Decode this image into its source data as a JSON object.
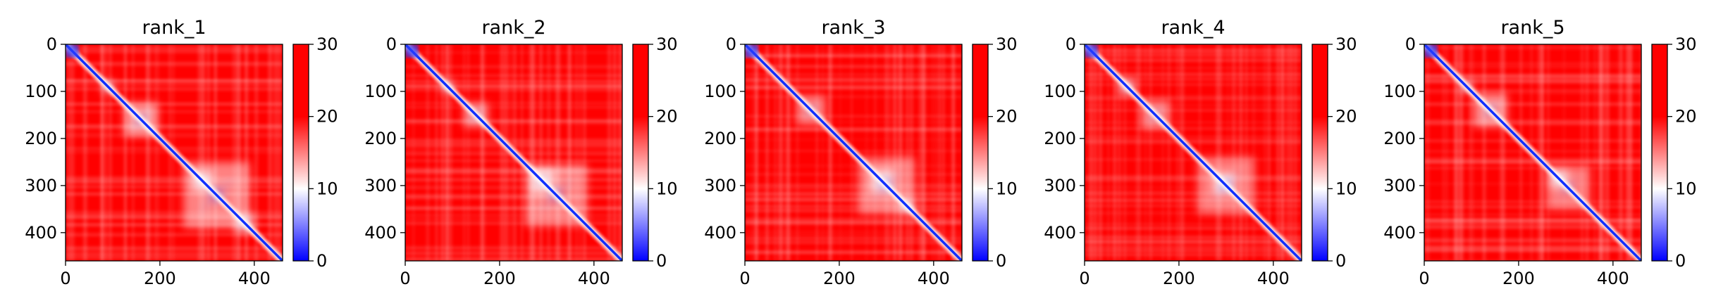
{
  "chart_data": [
    {
      "type": "heatmap",
      "title": "rank_1",
      "xlim": [
        0,
        460
      ],
      "ylim": [
        460,
        0
      ],
      "x_ticks": [
        0,
        200,
        400
      ],
      "y_ticks": [
        0,
        100,
        200,
        300,
        400
      ],
      "colorbar": {
        "min": 0,
        "max": 30,
        "ticks": [
          0,
          10,
          20,
          30
        ],
        "colormap": [
          "#0000ff",
          "#ffffff",
          "#ff0000"
        ]
      },
      "contact_blocks": [
        {
          "center": 90,
          "size": 25,
          "strength": 0.7
        },
        {
          "center": 160,
          "size": 70,
          "strength": 0.75
        },
        {
          "center": 290,
          "size": 40,
          "strength": 0.95
        },
        {
          "center": 320,
          "size": 140,
          "strength": 0.45
        },
        {
          "center": 380,
          "size": 40,
          "strength": 0.8
        }
      ]
    },
    {
      "type": "heatmap",
      "title": "rank_2",
      "xlim": [
        0,
        460
      ],
      "ylim": [
        460,
        0
      ],
      "x_ticks": [
        0,
        200,
        400
      ],
      "y_ticks": [
        0,
        100,
        200,
        300,
        400
      ],
      "colorbar": {
        "min": 0,
        "max": 30,
        "ticks": [
          0,
          10,
          20,
          30
        ],
        "colormap": [
          "#0000ff",
          "#ffffff",
          "#ff0000"
        ]
      },
      "contact_blocks": [
        {
          "center": 90,
          "size": 25,
          "strength": 0.7
        },
        {
          "center": 150,
          "size": 50,
          "strength": 0.6
        },
        {
          "center": 290,
          "size": 50,
          "strength": 0.95
        },
        {
          "center": 320,
          "size": 130,
          "strength": 0.4
        }
      ]
    },
    {
      "type": "heatmap",
      "title": "rank_3",
      "xlim": [
        0,
        460
      ],
      "ylim": [
        460,
        0
      ],
      "x_ticks": [
        0,
        200,
        400
      ],
      "y_ticks": [
        0,
        100,
        200,
        300,
        400
      ],
      "colorbar": {
        "min": 0,
        "max": 30,
        "ticks": [
          0,
          10,
          20,
          30
        ],
        "colormap": [
          "#0000ff",
          "#ffffff",
          "#ff0000"
        ]
      },
      "contact_blocks": [
        {
          "center": 140,
          "size": 60,
          "strength": 0.5
        },
        {
          "center": 290,
          "size": 50,
          "strength": 0.9
        },
        {
          "center": 345,
          "size": 30,
          "strength": 0.9
        },
        {
          "center": 300,
          "size": 120,
          "strength": 0.35
        }
      ]
    },
    {
      "type": "heatmap",
      "title": "rank_4",
      "xlim": [
        0,
        460
      ],
      "ylim": [
        460,
        0
      ],
      "x_ticks": [
        0,
        200,
        400
      ],
      "y_ticks": [
        0,
        100,
        200,
        300,
        400
      ],
      "colorbar": {
        "min": 0,
        "max": 30,
        "ticks": [
          0,
          10,
          20,
          30
        ],
        "colormap": [
          "#0000ff",
          "#ffffff",
          "#ff0000"
        ]
      },
      "contact_blocks": [
        {
          "center": 90,
          "size": 35,
          "strength": 0.85
        },
        {
          "center": 150,
          "size": 60,
          "strength": 0.5
        },
        {
          "center": 295,
          "size": 45,
          "strength": 0.95
        },
        {
          "center": 300,
          "size": 120,
          "strength": 0.35
        }
      ]
    },
    {
      "type": "heatmap",
      "title": "rank_5",
      "xlim": [
        0,
        460
      ],
      "ylim": [
        460,
        0
      ],
      "x_ticks": [
        0,
        200,
        400
      ],
      "y_ticks": [
        0,
        100,
        200,
        300,
        400
      ],
      "colorbar": {
        "min": 0,
        "max": 30,
        "ticks": [
          0,
          10,
          20,
          30
        ],
        "colormap": [
          "#0000ff",
          "#ffffff",
          "#ff0000"
        ]
      },
      "contact_blocks": [
        {
          "center": 90,
          "size": 25,
          "strength": 0.6
        },
        {
          "center": 140,
          "size": 70,
          "strength": 0.6
        },
        {
          "center": 285,
          "size": 40,
          "strength": 0.85
        },
        {
          "center": 305,
          "size": 90,
          "strength": 0.4
        }
      ]
    }
  ]
}
